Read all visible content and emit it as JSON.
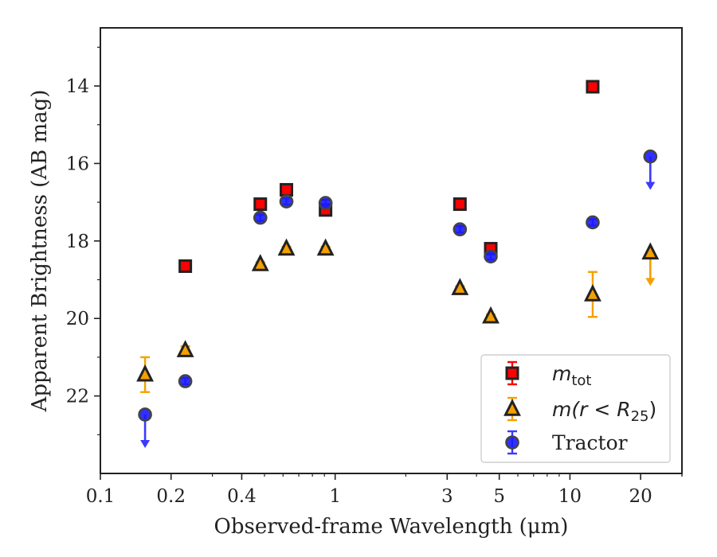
{
  "chart_data": {
    "type": "scatter",
    "xlabel": "Observed-frame Wavelength (μm)",
    "ylabel": "Apparent Brightness (AB mag)",
    "xscale": "log",
    "xlim": [
      0.1,
      30
    ],
    "ylim": [
      24,
      12.5
    ],
    "y_inverted": true,
    "x_ticks": [
      0.1,
      0.2,
      0.4,
      1,
      3,
      5,
      10,
      20
    ],
    "x_tick_labels": [
      "0.1",
      "0.2",
      "0.4",
      "1",
      "3",
      "5",
      "10",
      "20"
    ],
    "y_ticks": [
      14,
      16,
      18,
      20,
      22
    ],
    "y_tick_labels": [
      "14",
      "16",
      "18",
      "20",
      "22"
    ],
    "legend": {
      "placement": "lower-right",
      "entries": [
        {
          "series": "m_tot",
          "label_main": "m",
          "label_sub": "tot"
        },
        {
          "series": "m_r25",
          "label_main": "m(r < R",
          "label_sub": "25",
          "label_end": ")"
        },
        {
          "series": "tractor",
          "label_main": "Tractor",
          "label_sub": ""
        }
      ]
    },
    "series": [
      {
        "name": "m_tot",
        "marker": "square",
        "face_color": "#ff0000",
        "edge_color": "#222222",
        "err_color": "#ff0000",
        "points": [
          {
            "x": 0.23,
            "y": 18.65,
            "err": 0.08
          },
          {
            "x": 0.48,
            "y": 17.05,
            "err": 0.08
          },
          {
            "x": 0.62,
            "y": 16.68,
            "err": 0.08
          },
          {
            "x": 0.91,
            "y": 17.2,
            "err": 0.08
          },
          {
            "x": 3.4,
            "y": 17.05,
            "err": 0.08
          },
          {
            "x": 4.6,
            "y": 18.2,
            "err": 0.08
          },
          {
            "x": 12.5,
            "y": 14.02,
            "err": 0.05
          }
        ]
      },
      {
        "name": "m_r25",
        "marker": "triangle",
        "face_color": "#f5a000",
        "edge_color": "#222222",
        "err_color": "#f5a000",
        "points": [
          {
            "x": 0.155,
            "y": 21.45,
            "err": 0.45
          },
          {
            "x": 0.23,
            "y": 20.82,
            "err": 0.1
          },
          {
            "x": 0.48,
            "y": 18.6,
            "err": 0.05
          },
          {
            "x": 0.62,
            "y": 18.2,
            "err": 0.05
          },
          {
            "x": 0.91,
            "y": 18.2,
            "err": 0.05
          },
          {
            "x": 3.4,
            "y": 19.22,
            "err": 0.05
          },
          {
            "x": 4.6,
            "y": 19.95,
            "err": 0.05
          },
          {
            "x": 12.5,
            "y": 19.38,
            "err": 0.58
          },
          {
            "x": 22.0,
            "y": 18.3,
            "upper_limit": true
          }
        ]
      },
      {
        "name": "tractor",
        "marker": "circle",
        "face_color": "#1a1aff",
        "edge_color": "#444444",
        "err_color": "#3a3aff",
        "points": [
          {
            "x": 0.155,
            "y": 22.48,
            "upper_limit": true
          },
          {
            "x": 0.23,
            "y": 21.62,
            "err": 0.08
          },
          {
            "x": 0.48,
            "y": 17.4,
            "err": 0.08
          },
          {
            "x": 0.62,
            "y": 16.98,
            "err": 0.08
          },
          {
            "x": 0.91,
            "y": 17.02,
            "err": 0.08
          },
          {
            "x": 3.4,
            "y": 17.7,
            "err": 0.08
          },
          {
            "x": 4.6,
            "y": 18.4,
            "err": 0.08
          },
          {
            "x": 12.5,
            "y": 17.52,
            "err": 0.08
          },
          {
            "x": 22.0,
            "y": 15.82,
            "upper_limit": true
          }
        ]
      }
    ]
  }
}
